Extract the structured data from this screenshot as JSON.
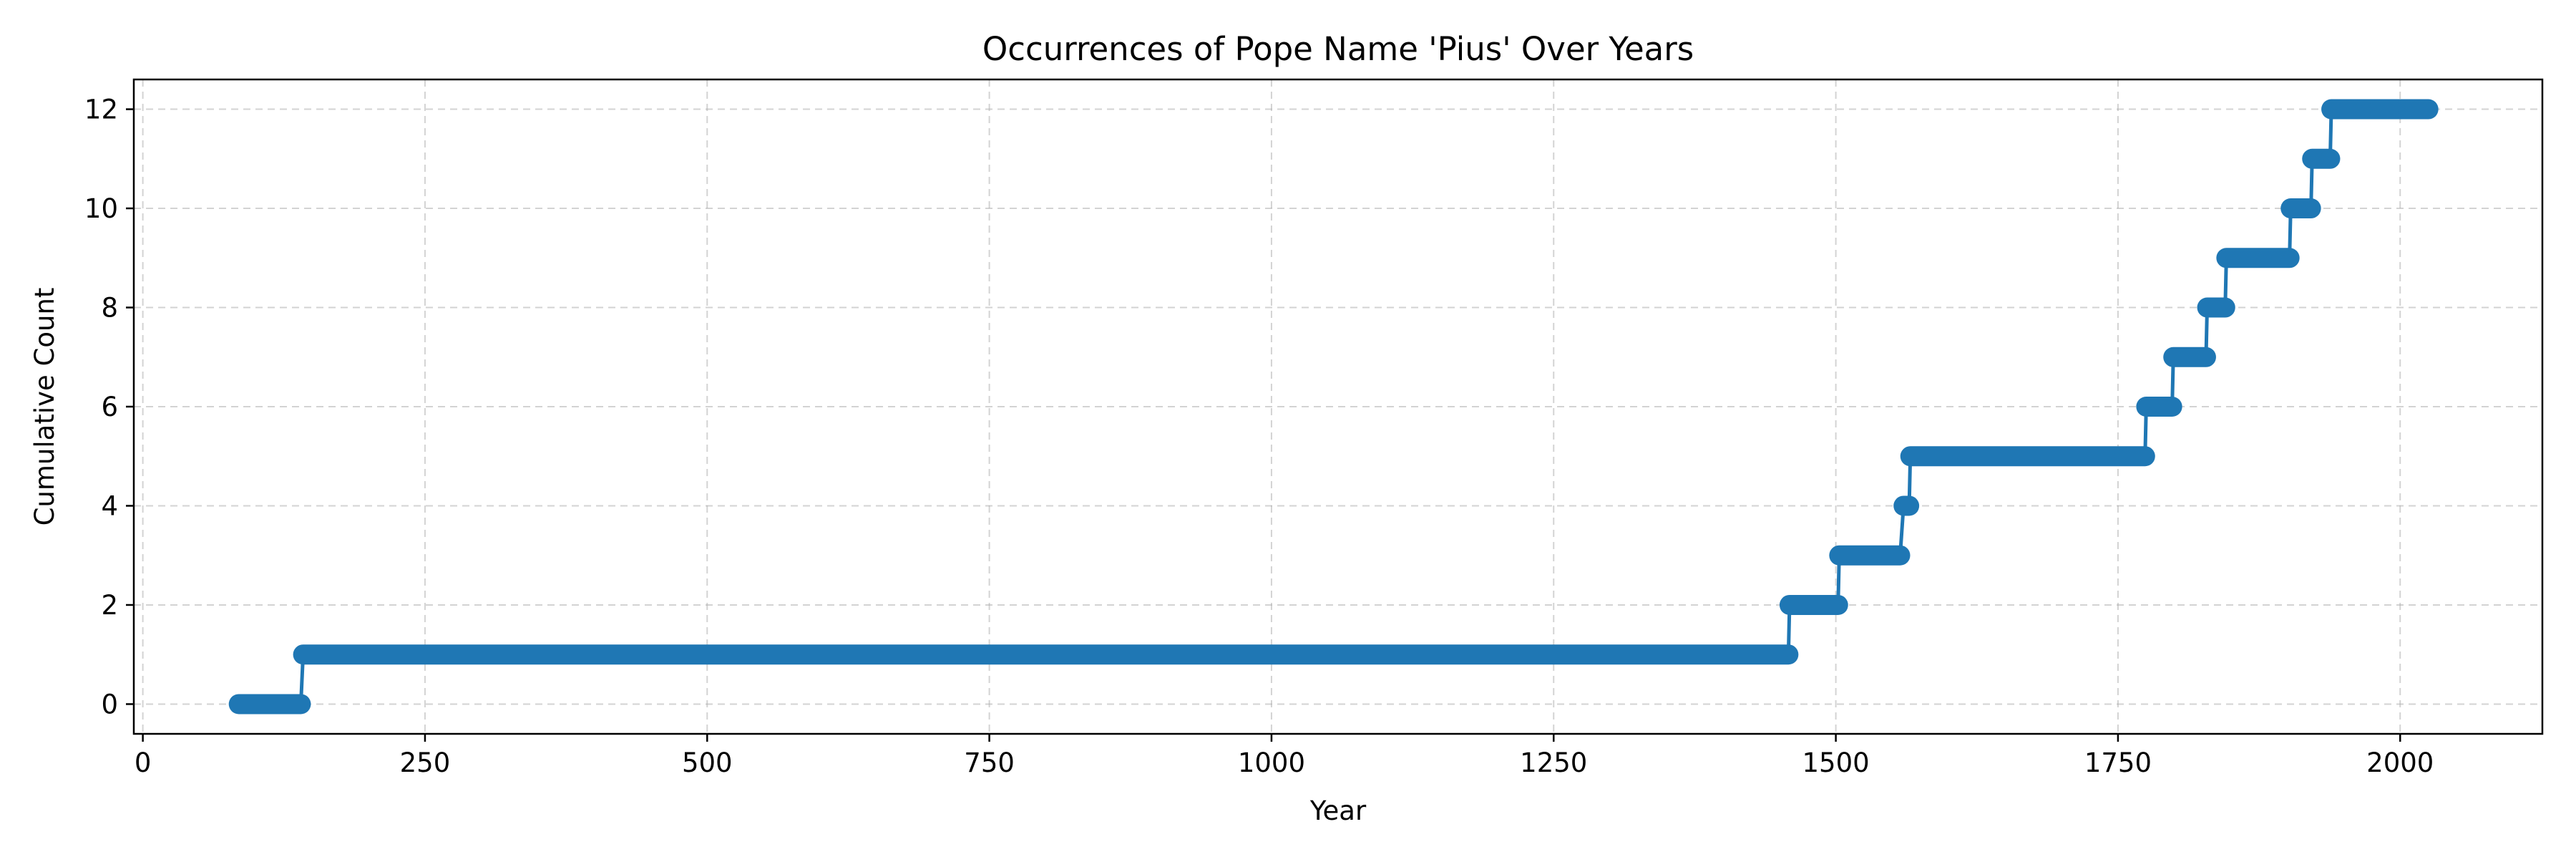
{
  "chart_data": {
    "type": "line",
    "title": "Occurrences of Pope Name 'Pius' Over Years",
    "xlabel": "Year",
    "ylabel": "Cumulative Count",
    "xlim": [
      -8,
      2126
    ],
    "ylim": [
      -0.6,
      12.6
    ],
    "xticks": [
      0,
      250,
      500,
      750,
      1000,
      1250,
      1500,
      1750,
      2000
    ],
    "yticks": [
      0,
      2,
      4,
      6,
      8,
      10,
      12
    ],
    "grid": true,
    "grid_style": "dashed",
    "legend": "none",
    "color": "#1f77b4",
    "series": [
      {
        "steps": [
          {
            "from": 85,
            "to": 140,
            "value": 0
          },
          {
            "from": 142,
            "to": 1458,
            "value": 1
          },
          {
            "from": 1459,
            "to": 1502,
            "value": 2
          },
          {
            "from": 1503,
            "to": 1557,
            "value": 3
          },
          {
            "from": 1560,
            "to": 1565,
            "value": 4
          },
          {
            "from": 1566,
            "to": 1774,
            "value": 5
          },
          {
            "from": 1775,
            "to": 1798,
            "value": 6
          },
          {
            "from": 1799,
            "to": 1828,
            "value": 7
          },
          {
            "from": 1829,
            "to": 1845,
            "value": 8
          },
          {
            "from": 1846,
            "to": 1902,
            "value": 9
          },
          {
            "from": 1903,
            "to": 1921,
            "value": 10
          },
          {
            "from": 1922,
            "to": 1938,
            "value": 11
          },
          {
            "from": 1939,
            "to": 2025,
            "value": 12
          }
        ]
      }
    ]
  }
}
